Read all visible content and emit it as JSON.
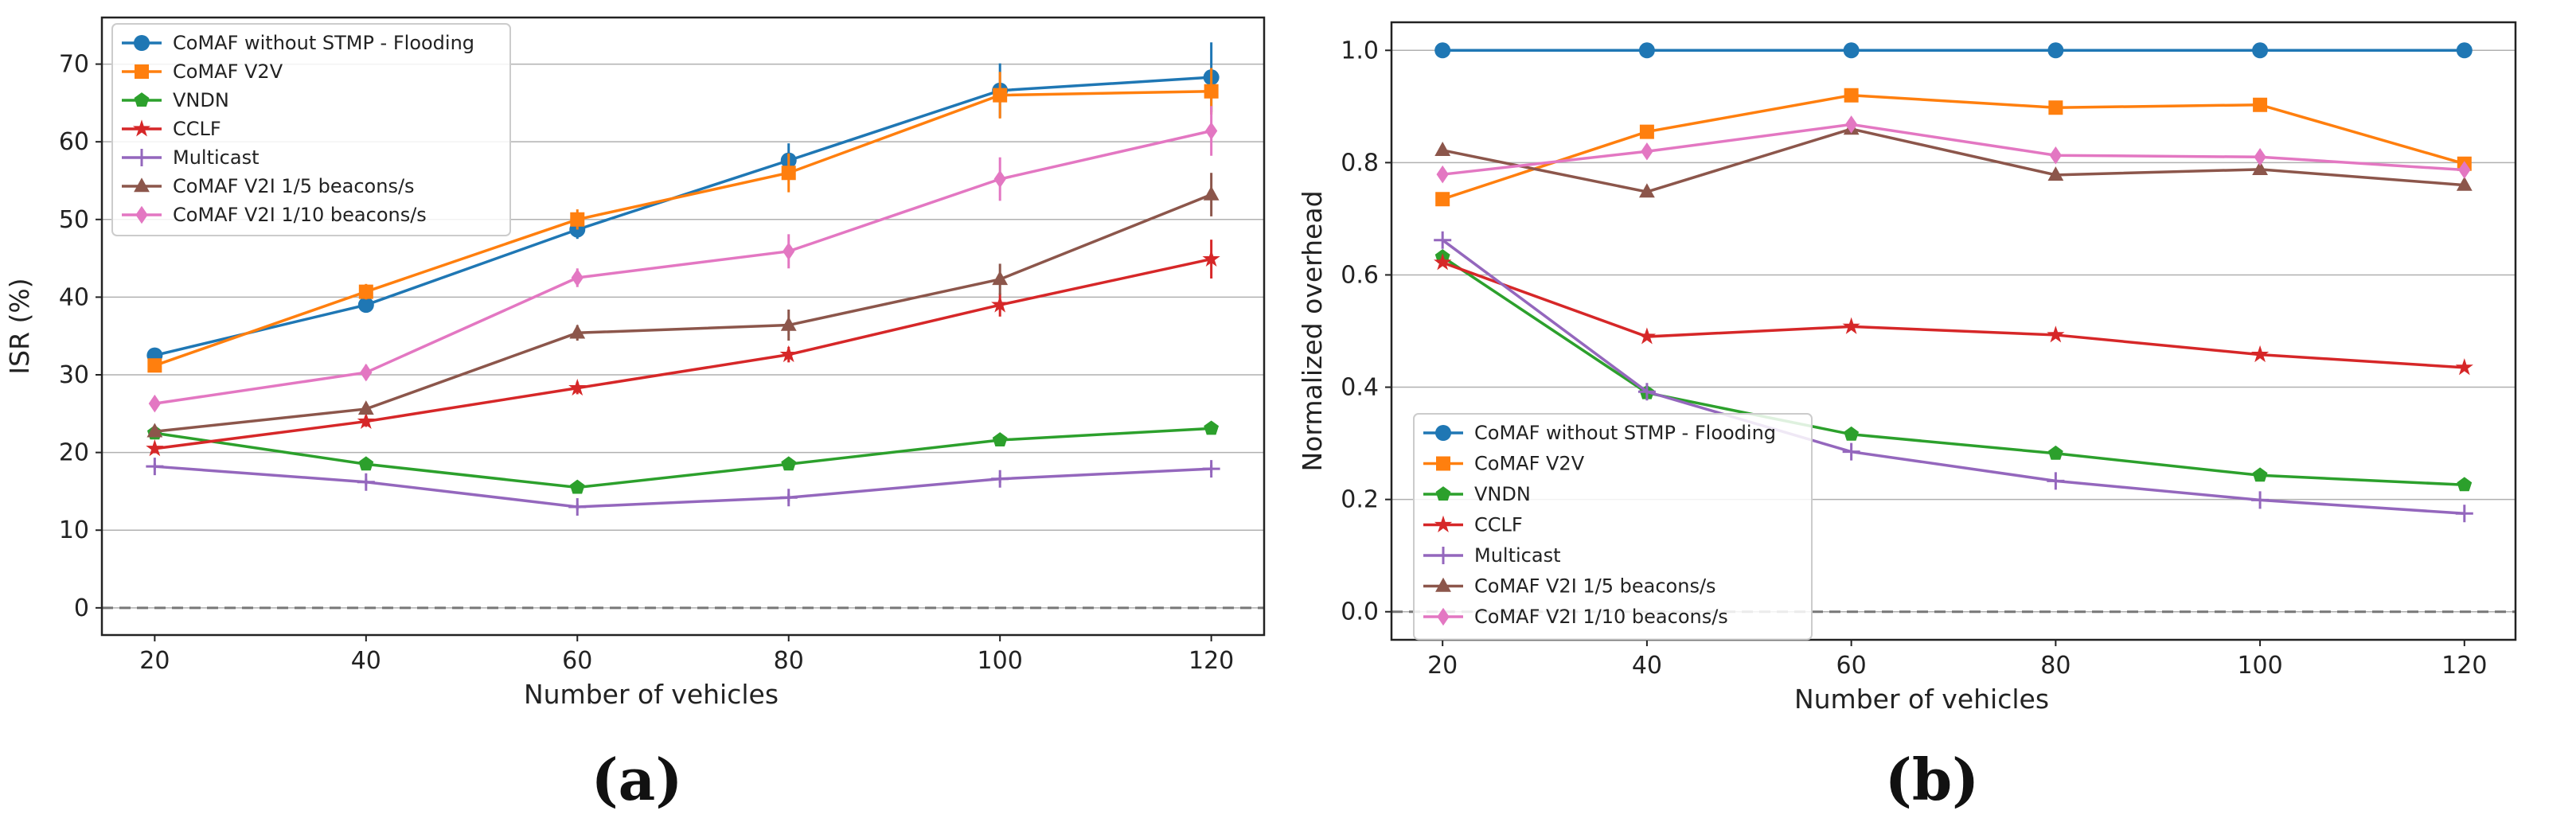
{
  "chart_data": [
    {
      "type": "line",
      "panel_label": "(a)",
      "title": "",
      "xlabel": "Number of vehicles",
      "ylabel": "ISR (%)",
      "x": [
        20,
        40,
        60,
        80,
        100,
        120
      ],
      "xticks": [
        "20",
        "40",
        "60",
        "80",
        "100",
        "120"
      ],
      "xlim": [
        15,
        125
      ],
      "ylim": [
        -3.5,
        76
      ],
      "yticks": [
        "0",
        "10",
        "20",
        "30",
        "40",
        "50",
        "60",
        "70"
      ],
      "ytick_values": [
        0,
        10,
        20,
        30,
        40,
        50,
        60,
        70
      ],
      "grid": "horizontal",
      "reference_line": 0,
      "legend_position": "top-left",
      "series": [
        {
          "name": "CoMAF without STMP - Flooding",
          "color": "#1f77b4",
          "marker": "circle",
          "values": [
            32.5,
            39,
            48.7,
            57.6,
            66.6,
            68.3
          ],
          "errors": [
            0.8,
            1,
            1.2,
            2.2,
            3.5,
            4.5
          ]
        },
        {
          "name": "CoMAF V2V",
          "color": "#ff7f0e",
          "marker": "square",
          "values": [
            31.2,
            40.7,
            50,
            56,
            66,
            66.5
          ],
          "errors": [
            0.8,
            1,
            1.3,
            2.5,
            3,
            3
          ]
        },
        {
          "name": "VNDN",
          "color": "#2ca02c",
          "marker": "pentagon",
          "values": [
            22.5,
            18.5,
            15.5,
            18.5,
            21.6,
            23.1
          ],
          "errors": [
            0.5,
            0.5,
            0.5,
            0.5,
            0.6,
            0.6
          ]
        },
        {
          "name": "CCLF",
          "color": "#d62728",
          "marker": "star",
          "values": [
            20.5,
            24,
            28.3,
            32.6,
            39,
            44.9
          ],
          "errors": [
            0.6,
            0.7,
            0.8,
            1,
            1.5,
            2.5
          ]
        },
        {
          "name": "Multicast",
          "color": "#9467bd",
          "marker": "plus",
          "values": [
            18.2,
            16.2,
            13,
            14.2,
            16.6,
            17.9
          ],
          "errors": [
            0.4,
            0.4,
            0.4,
            0.5,
            0.5,
            0.5
          ]
        },
        {
          "name": "CoMAF V2I 1/5 beacons/s",
          "color": "#8c564b",
          "marker": "triangle",
          "values": [
            22.7,
            25.6,
            35.4,
            36.4,
            42.3,
            53.2
          ],
          "errors": [
            0.6,
            0.7,
            1,
            2,
            2,
            2.8
          ]
        },
        {
          "name": "CoMAF V2I 1/10 beacons/s",
          "color": "#e377c2",
          "marker": "diamond",
          "values": [
            26.3,
            30.3,
            42.5,
            45.9,
            55.2,
            61.4
          ],
          "errors": [
            0.9,
            1,
            1.2,
            2.2,
            2.8,
            3.2
          ]
        }
      ]
    },
    {
      "type": "line",
      "panel_label": "(b)",
      "title": "",
      "xlabel": "Number of vehicles",
      "ylabel": "Normalized overhead",
      "x": [
        20,
        40,
        60,
        80,
        100,
        120
      ],
      "xticks": [
        "20",
        "40",
        "60",
        "80",
        "100",
        "120"
      ],
      "xlim": [
        15,
        125
      ],
      "ylim": [
        -0.05,
        1.05
      ],
      "yticks": [
        "0.0",
        "0.2",
        "0.4",
        "0.6",
        "0.8",
        "1.0"
      ],
      "ytick_values": [
        0,
        0.2,
        0.4,
        0.6,
        0.8,
        1.0
      ],
      "grid": "horizontal",
      "reference_line": 0,
      "legend_position": "bottom-left",
      "series": [
        {
          "name": "CoMAF without STMP - Flooding",
          "color": "#1f77b4",
          "marker": "circle",
          "values": [
            1.0,
            1.0,
            1.0,
            1.0,
            1.0,
            1.0
          ]
        },
        {
          "name": "CoMAF V2V",
          "color": "#ff7f0e",
          "marker": "square",
          "values": [
            0.735,
            0.855,
            0.92,
            0.898,
            0.903,
            0.798
          ]
        },
        {
          "name": "VNDN",
          "color": "#2ca02c",
          "marker": "pentagon",
          "values": [
            0.632,
            0.39,
            0.316,
            0.282,
            0.243,
            0.226
          ]
        },
        {
          "name": "CCLF",
          "color": "#d62728",
          "marker": "star",
          "values": [
            0.622,
            0.49,
            0.508,
            0.493,
            0.458,
            0.435
          ]
        },
        {
          "name": "Multicast",
          "color": "#9467bd",
          "marker": "plus",
          "values": [
            0.662,
            0.392,
            0.285,
            0.233,
            0.199,
            0.175
          ]
        },
        {
          "name": "CoMAF V2I 1/5 beacons/s",
          "color": "#8c564b",
          "marker": "triangle",
          "values": [
            0.822,
            0.748,
            0.86,
            0.778,
            0.788,
            0.76
          ]
        },
        {
          "name": "CoMAF V2I 1/10 beacons/s",
          "color": "#e377c2",
          "marker": "diamond",
          "values": [
            0.779,
            0.82,
            0.868,
            0.813,
            0.81,
            0.787
          ]
        }
      ]
    }
  ]
}
